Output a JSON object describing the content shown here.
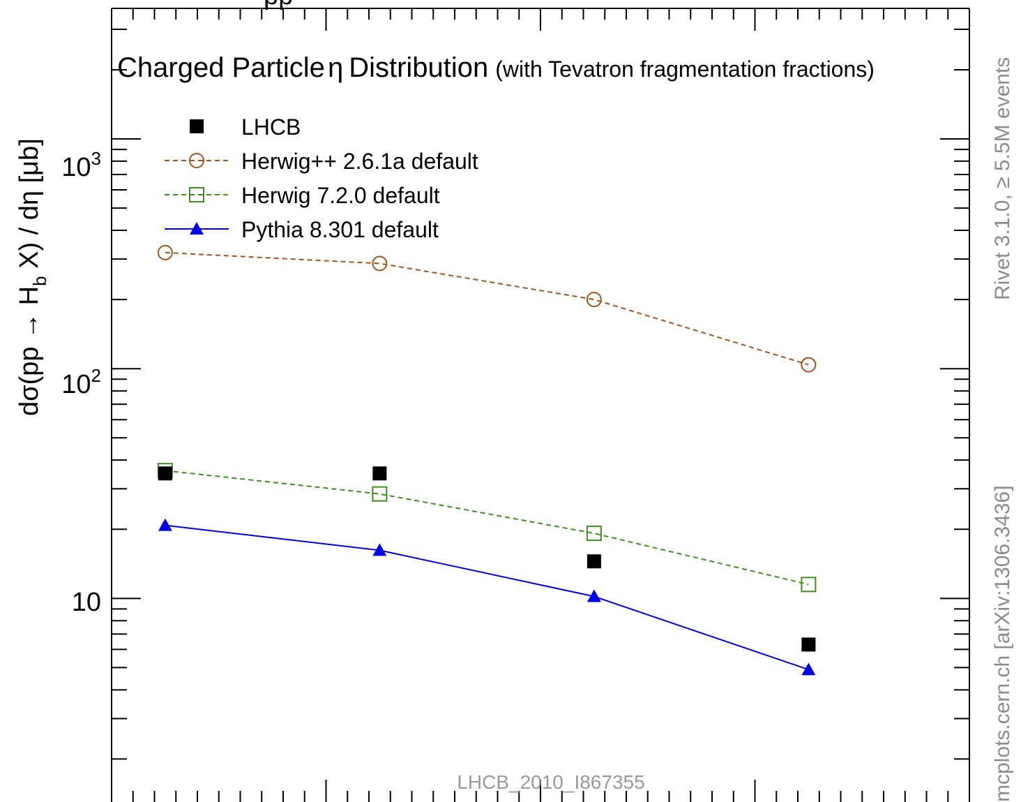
{
  "chart_data": {
    "type": "line",
    "title": "Charged Particle",
    "title_symbol": "η",
    "title_rest": "Distribution",
    "subtitle": "(with Tevatron fragmentation fractions)",
    "top_partial_text": "pp",
    "ylabel": "dσ(pp → H",
    "ylabel_sub": "b",
    "ylabel_rest": " X) / dη [μb]",
    "yscale": "log",
    "ylim": [
      1.3,
      3700
    ],
    "xlim": [
      2.0,
      6.0
    ],
    "yticks": [
      {
        "exp_base": "10",
        "exp_power": "3",
        "value": 1000
      },
      {
        "exp_base": "10",
        "exp_power": "2",
        "value": 100
      },
      {
        "text": "10",
        "value": 10
      }
    ],
    "x": [
      2.25,
      3.25,
      4.25,
      5.25
    ],
    "series": [
      {
        "name": "LHCB",
        "style": "data",
        "marker": "filled-square",
        "color": "#000000",
        "values": [
          35.0,
          35.0,
          14.5,
          6.3
        ]
      },
      {
        "name": "Herwig++ 2.6.1a default",
        "style": "dashed",
        "marker": "open-circle",
        "color": "#a0551e",
        "values": [
          320,
          287,
          200,
          104
        ]
      },
      {
        "name": "Herwig 7.2.0 default",
        "style": "dashed",
        "marker": "open-square",
        "color": "#3c8f1e",
        "values": [
          36.0,
          28.5,
          19.2,
          11.5
        ]
      },
      {
        "name": "Pythia 8.301 default",
        "style": "solid",
        "marker": "filled-triangle",
        "color": "#0000e6",
        "values": [
          20.8,
          16.2,
          10.2,
          4.9
        ]
      }
    ],
    "legend_placement": "top-left",
    "grid": false,
    "side_label_top": "Rivet 3.1.0, ≥ 5.5M events",
    "side_label_bottom": "mcplots.cern.ch [arXiv:1306.3436]",
    "analysis_label": "LHCB_2010_I867355"
  }
}
